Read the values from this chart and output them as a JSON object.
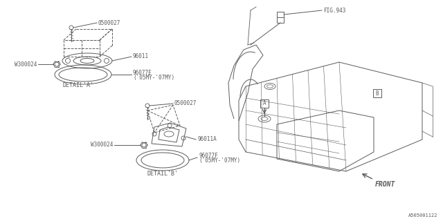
{
  "bg_color": "#ffffff",
  "line_color": "#5a5a5a",
  "fig_id": "A505001122",
  "labels": {
    "0500027_top": "0500027",
    "96011": "96011",
    "W300024_top": "W300024",
    "96077E": "96077E",
    "96077E_year": "('05MY-'07MY)",
    "detail_a": "DETAIL'A'",
    "0500027_bot": "0500027",
    "96011A": "96011A",
    "W300024_bot": "W300024",
    "96077F": "96077F",
    "96077F_year": "('05MY-'07MY)",
    "detail_b": "DETAIL'B'",
    "fig943": "FIG.943",
    "front": "FRONT"
  },
  "font_size_label": 5.5,
  "font_size_detail": 6.0,
  "font_size_figid": 5.0
}
